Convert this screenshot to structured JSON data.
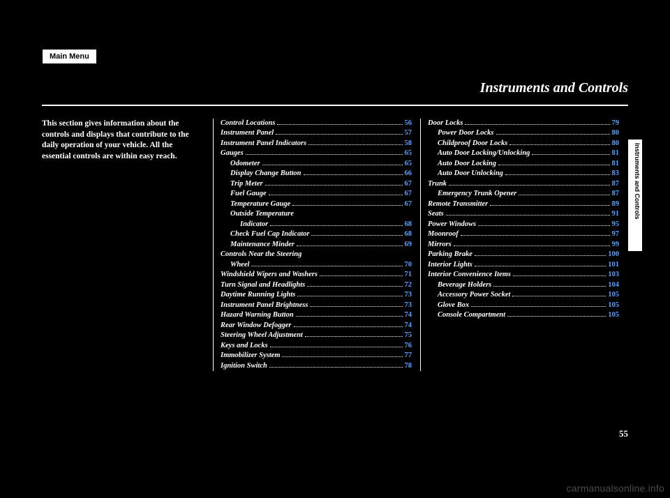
{
  "mainMenuLabel": "Main Menu",
  "chapterTitle": "Instruments and Controls",
  "sideTab": "Instruments and Controls",
  "pageNumber": "55",
  "watermark": "carmanualsonline.info",
  "intro": "This section gives information about the controls and displays that contribute to the daily operation of your vehicle. All the essential controls are within easy reach.",
  "colors": {
    "background": "#000000",
    "text": "#ffffff",
    "link": "#5aa0ff",
    "tab": "#ffffff",
    "watermark": "#4a4a4a"
  },
  "toc": {
    "col1": [
      {
        "label": "Control Locations",
        "page": "56",
        "indent": 0
      },
      {
        "label": "Instrument Panel",
        "page": "57",
        "indent": 0
      },
      {
        "label": "Instrument Panel Indicators",
        "page": "58",
        "indent": 0
      },
      {
        "label": "Gauges",
        "page": "65",
        "indent": 0
      },
      {
        "label": "Odometer",
        "page": "65",
        "indent": 1
      },
      {
        "label": "Display Change Button",
        "page": "66",
        "indent": 1
      },
      {
        "label": "Trip Meter",
        "page": "67",
        "indent": 1
      },
      {
        "label": "Fuel Gauge",
        "page": "67",
        "indent": 1
      },
      {
        "label": "Temperature Gauge",
        "page": "67",
        "indent": 1
      },
      {
        "label": "Outside Temperature",
        "page": "",
        "indent": 1
      },
      {
        "label": "Indicator",
        "page": "68",
        "indent": 2
      },
      {
        "label": "Check Fuel Cap Indicator",
        "page": "68",
        "indent": 1
      },
      {
        "label": "Maintenance Minder",
        "page": "69",
        "indent": 1
      },
      {
        "label": "Controls Near the Steering",
        "page": "",
        "indent": 0
      },
      {
        "label": "Wheel",
        "page": "70",
        "indent": 1
      },
      {
        "label": "Windshield Wipers and Washers",
        "page": "71",
        "indent": 0
      },
      {
        "label": "Turn Signal and Headlights",
        "page": "72",
        "indent": 0
      },
      {
        "label": "Daytime Running Lights",
        "page": "73",
        "indent": 0
      },
      {
        "label": "Instrument Panel Brightness",
        "page": "73",
        "indent": 0
      },
      {
        "label": "Hazard Warning Button",
        "page": "74",
        "indent": 0
      },
      {
        "label": "Rear Window Defogger",
        "page": "74",
        "indent": 0
      },
      {
        "label": "Steering Wheel Adjustment",
        "page": "75",
        "indent": 0
      },
      {
        "label": "Keys and Locks",
        "page": "76",
        "indent": 0
      },
      {
        "label": "Immobilizer System",
        "page": "77",
        "indent": 0
      },
      {
        "label": "Ignition Switch",
        "page": "78",
        "indent": 0
      }
    ],
    "col2": [
      {
        "label": "Door Locks",
        "page": "79",
        "indent": 0
      },
      {
        "label": "Power Door Locks",
        "page": "80",
        "indent": 1
      },
      {
        "label": "Childproof Door Locks",
        "page": "80",
        "indent": 1
      },
      {
        "label": "Auto Door Locking/Unlocking",
        "page": "81",
        "indent": 1
      },
      {
        "label": "Auto Door Locking",
        "page": "81",
        "indent": 1
      },
      {
        "label": "Auto Door Unlocking",
        "page": "83",
        "indent": 1
      },
      {
        "label": "Trunk",
        "page": "87",
        "indent": 0
      },
      {
        "label": "Emergency Trunk Opener",
        "page": "87",
        "indent": 1
      },
      {
        "label": "Remote Transmitter",
        "page": "89",
        "indent": 0
      },
      {
        "label": "Seats",
        "page": "91",
        "indent": 0
      },
      {
        "label": "Power Windows",
        "page": "95",
        "indent": 0
      },
      {
        "label": "Moonroof",
        "page": "97",
        "indent": 0
      },
      {
        "label": "Mirrors",
        "page": "99",
        "indent": 0
      },
      {
        "label": "Parking Brake",
        "page": "100",
        "indent": 0
      },
      {
        "label": "Interior Lights",
        "page": "101",
        "indent": 0
      },
      {
        "label": "Interior Convenience Items",
        "page": "103",
        "indent": 0
      },
      {
        "label": "Beverage Holders",
        "page": "104",
        "indent": 1
      },
      {
        "label": "Accessory Power Socket",
        "page": "105",
        "indent": 1
      },
      {
        "label": "Glove Box",
        "page": "105",
        "indent": 1
      },
      {
        "label": "Console Compartment",
        "page": "105",
        "indent": 1
      }
    ]
  }
}
